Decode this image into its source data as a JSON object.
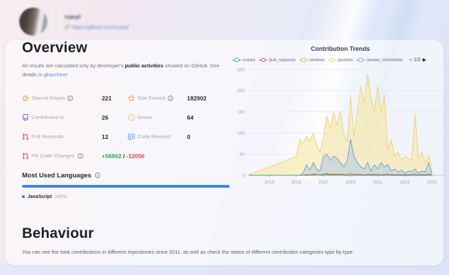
{
  "profile": {
    "username": "ruanyf",
    "url": "https://github.com/ruanyf"
  },
  "overview": {
    "title": "Overview",
    "desc": {
      "p1": "All results are calculated only by developer's ",
      "bold": "public activities",
      "p2": " showed on GitHub. See details in ",
      "link": "gharchive",
      "p3": "!"
    },
    "stats": [
      {
        "icon": "star-icon",
        "color": "#dfa93f",
        "label": "Starred Repos",
        "value": "221"
      },
      {
        "icon": "star-icon",
        "color": "#dfa93f",
        "label": "Star Earned",
        "value": "182902"
      },
      {
        "icon": "repo-icon",
        "color": "#8957e5",
        "label": "Contributed to",
        "value": "26"
      },
      {
        "icon": "issue-opened-icon",
        "color": "#e7c55a",
        "label": "Issues",
        "value": "64"
      },
      {
        "icon": "pull-request-icon",
        "color": "#d84a64",
        "label": "Pull Requests",
        "value": "12"
      },
      {
        "icon": "code-review-icon",
        "color": "#539bf5",
        "label": "Code Reviews",
        "value": "0"
      },
      {
        "icon": "pull-request-icon",
        "color": "#d84a64",
        "label": "PR Code Changes",
        "additions": "+56902",
        "separator": "/",
        "deletions": "-12056",
        "additions_color": "#2da44e",
        "deletions_color": "#e5484d"
      }
    ]
  },
  "languages": {
    "title": "Most Used Languages",
    "bar_color": "#3b82f6",
    "items": [
      {
        "name": "JavaScript",
        "percent": "100%",
        "color": "#3b82f6"
      }
    ]
  },
  "behaviour": {
    "title": "Behaviour",
    "description": "You can see the total contributions in different repositories since 2011, as well as check the status of different contribution categories type by type."
  },
  "chart_data": {
    "type": "area",
    "title": "Contribution Trends",
    "x_start": 2011.5,
    "x_step": 0.25,
    "x_ticks": [
      2013,
      2015,
      2017,
      2019,
      2021,
      2023,
      2025
    ],
    "ylim": [
      0,
      250
    ],
    "y_ticks": [
      0,
      50,
      100,
      150,
      200,
      250
    ],
    "grid": true,
    "legend_position": "top",
    "pagination": {
      "prev": "◀",
      "label": "1/2",
      "next": "▶"
    },
    "series": [
      {
        "name": "issues",
        "color": "#3ba272",
        "values": [
          0,
          0,
          0,
          0,
          0,
          0,
          0,
          0,
          0,
          0,
          0,
          0,
          0,
          0,
          0,
          0,
          0,
          2,
          1,
          3,
          2,
          1,
          3,
          4,
          2,
          3,
          2,
          3,
          2,
          1,
          4,
          2,
          3,
          2,
          1,
          3,
          2,
          2,
          3,
          1,
          2,
          3,
          2,
          1,
          2,
          1,
          2,
          1,
          2,
          3,
          1,
          2,
          1,
          3,
          2
        ]
      },
      {
        "name": "pull_requests",
        "color": "#d6465f",
        "values": [
          0,
          0,
          0,
          0,
          0,
          0,
          0,
          0,
          0,
          0,
          0,
          0,
          0,
          0,
          0,
          0,
          0,
          0,
          1,
          0,
          2,
          1,
          0,
          2,
          1,
          1,
          0,
          2,
          1,
          0,
          0,
          0,
          0,
          0,
          0,
          0,
          0,
          0,
          0,
          0,
          0,
          0,
          0,
          0,
          0,
          0,
          0,
          0,
          0,
          0,
          0,
          0,
          0,
          0,
          0
        ]
      },
      {
        "name": "reviews",
        "color": "#f2a33c",
        "values": [
          0,
          0,
          0,
          0,
          0,
          0,
          0,
          0,
          0,
          0,
          0,
          0,
          0,
          0,
          0,
          0,
          0,
          0,
          0,
          0,
          0,
          0,
          0,
          0,
          0,
          0,
          0,
          0,
          0,
          0,
          0,
          0,
          0,
          0,
          0,
          0,
          0,
          0,
          0,
          0,
          0,
          0,
          0,
          0,
          0,
          0,
          0,
          0,
          0,
          0,
          0,
          0,
          0,
          0,
          0
        ]
      },
      {
        "name": "pushes",
        "color": "#ecd377",
        "fill": "rgba(247,230,153,0.55)",
        "values": [
          2,
          5,
          8,
          11,
          14,
          17,
          20,
          23,
          26,
          29,
          32,
          35,
          38,
          42,
          45,
          85,
          75,
          92,
          80,
          100,
          70,
          55,
          90,
          140,
          110,
          148,
          120,
          150,
          95,
          80,
          185,
          90,
          150,
          210,
          170,
          240,
          185,
          150,
          210,
          150,
          190,
          60,
          85,
          45,
          55,
          35,
          45,
          40,
          35,
          145,
          40,
          55,
          30,
          45,
          20
        ]
      },
      {
        "name": "review_comments",
        "color": "#6f9fd3",
        "fill": "rgba(167,199,233,0.5)",
        "values": [
          0,
          0,
          0,
          0,
          0,
          0,
          0,
          0,
          0,
          0,
          0,
          0,
          0,
          0,
          0,
          0,
          5,
          25,
          12,
          30,
          15,
          10,
          45,
          50,
          35,
          45,
          40,
          30,
          20,
          35,
          85,
          45,
          30,
          20,
          15,
          30,
          10,
          25,
          15,
          30,
          20,
          25,
          10,
          15,
          8,
          12,
          5,
          10,
          8,
          15,
          5,
          10,
          8,
          30,
          5
        ]
      }
    ]
  }
}
